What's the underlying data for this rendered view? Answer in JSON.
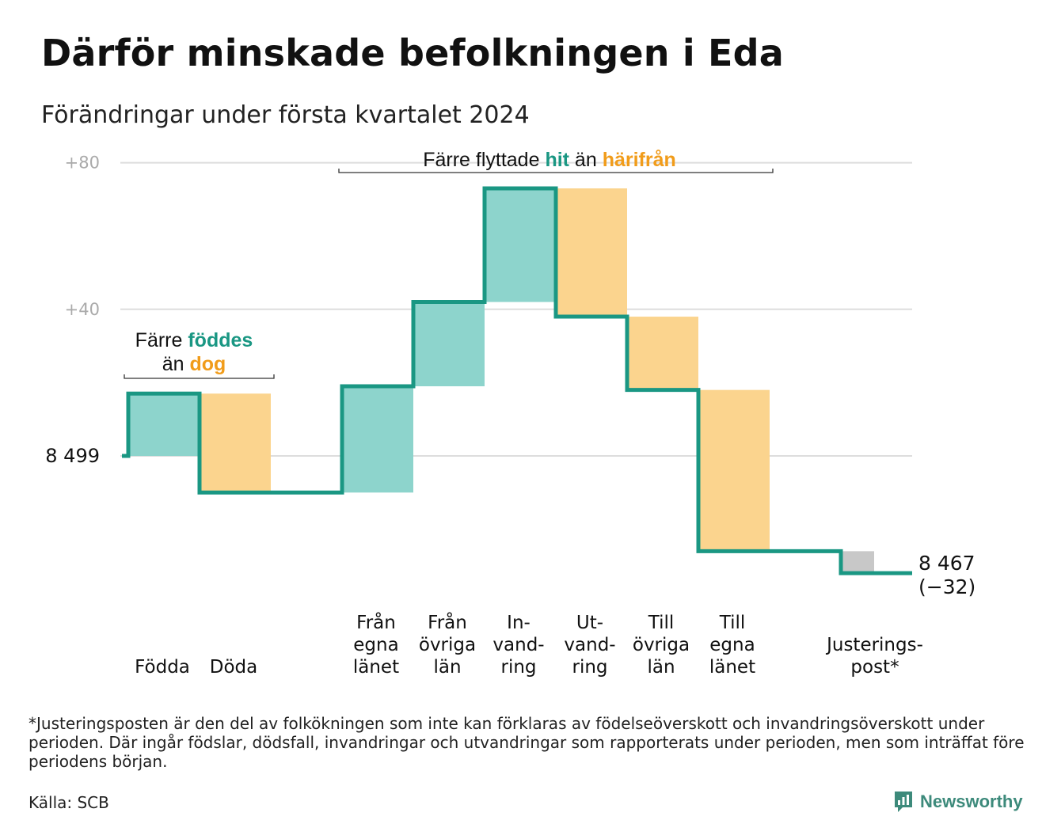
{
  "title": "Därför minskade befolkningen i Eda",
  "subtitle": "Förändringar under första kvartalet 2024",
  "colors": {
    "green": "#1a9783",
    "green_fill": "#8dd4cc",
    "orange": "#f19c1a",
    "orange_fill": "#fbd48e",
    "gray_fill": "#c8c8c8",
    "grid": "#dddddd",
    "tick": "#aaaaaa"
  },
  "chart_data": {
    "type": "waterfall",
    "start_value": 8499,
    "start_label": "8  499",
    "end_value": 8467,
    "end_label": "8 467",
    "end_change_label": "(−32)",
    "y_axis": {
      "range": [
        -35,
        80
      ],
      "ticks": [
        {
          "value": 80,
          "label": "+80"
        },
        {
          "value": 40,
          "label": "+40"
        },
        {
          "value": 0,
          "label": ""
        }
      ]
    },
    "steps": [
      {
        "label_lines": [
          "Födda"
        ],
        "change": 17,
        "color": "green"
      },
      {
        "label_lines": [
          "Döda"
        ],
        "change": -27,
        "color": "orange"
      },
      {
        "label_lines": [],
        "change": 0,
        "color": "none"
      },
      {
        "label_lines": [
          "Från",
          "egna",
          "länet"
        ],
        "change": 29,
        "color": "green"
      },
      {
        "label_lines": [
          "Från",
          "övriga",
          "län"
        ],
        "change": 23,
        "color": "green"
      },
      {
        "label_lines": [
          "In-",
          "vand-",
          "ring"
        ],
        "change": 31,
        "color": "green"
      },
      {
        "label_lines": [
          "Ut-",
          "vand-",
          "ring"
        ],
        "change": -35,
        "color": "orange"
      },
      {
        "label_lines": [
          "Till",
          "övriga",
          "län"
        ],
        "change": -20,
        "color": "orange"
      },
      {
        "label_lines": [
          "Till",
          "egna",
          "länet"
        ],
        "change": -44,
        "color": "orange"
      },
      {
        "label_lines": [],
        "change": 0,
        "color": "none"
      },
      {
        "label_lines": [
          "Justerings-",
          "post*"
        ],
        "change": -6,
        "color": "gray"
      }
    ],
    "annotations": [
      {
        "id": "births",
        "lines": [
          [
            {
              "text": "Färre ",
              "color": "dark"
            },
            {
              "text": "föddes",
              "color": "green"
            }
          ],
          [
            {
              "text": "än ",
              "color": "dark"
            },
            {
              "text": "dog",
              "color": "orange"
            }
          ]
        ],
        "span": [
          0,
          1
        ]
      },
      {
        "id": "moves",
        "lines": [
          [
            {
              "text": "Färre flyttade ",
              "color": "dark"
            },
            {
              "text": "hit",
              "color": "green"
            },
            {
              "text": " än ",
              "color": "dark"
            },
            {
              "text": "härifrån",
              "color": "orange"
            }
          ]
        ],
        "span": [
          3,
          8
        ]
      }
    ]
  },
  "footnote": "*Justeringsposten är den del av folkökningen som inte kan förklaras av födelseöverskott och invandringsöverskott under perioden. Där ingår födslar, dödsfall, invandringar och utvandringar som rapporterats under perioden, men som inträffat före periodens början.",
  "source": "Källa: SCB",
  "brand": {
    "name": "Newsworthy",
    "icon": "newsworthy-logo-icon"
  }
}
